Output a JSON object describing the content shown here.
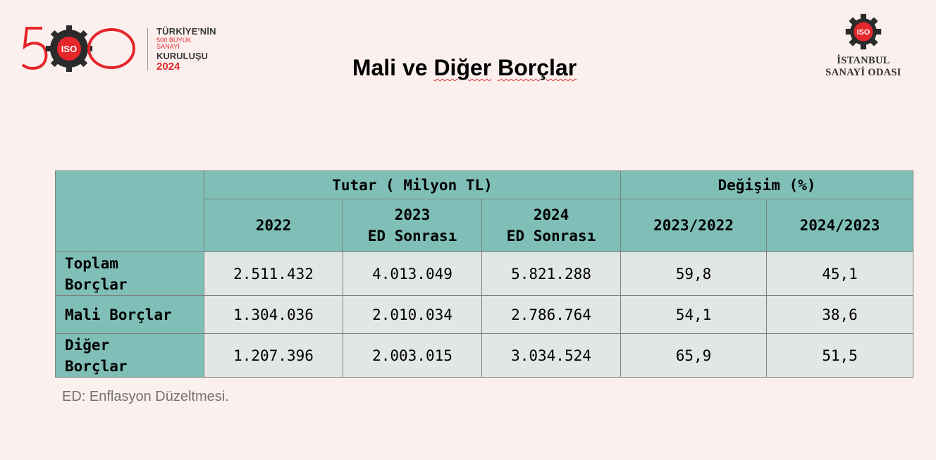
{
  "brand_left": {
    "line1": "TÜRKİYE'NİN",
    "line2": "500 BÜYÜK SANAYİ",
    "line3": "KURULUŞU",
    "line4": "2024",
    "mark_text": "ISO",
    "colors": {
      "red": "#e5262b",
      "dark": "#3a3a3a"
    }
  },
  "brand_right": {
    "mark_text": "ISO",
    "line1": "İSTANBUL",
    "line2": "SANAYİ ODASI"
  },
  "title": {
    "word1": "Mali",
    "word2": "ve",
    "word3": "Diğer",
    "word4": "Borçlar"
  },
  "table": {
    "group_headers": {
      "amount": "Tutar ( Milyon TL)",
      "change": "Değişim (%)"
    },
    "col_headers": {
      "c1": {
        "line1": "2022",
        "line2": ""
      },
      "c2": {
        "line1": "2023",
        "line2": "ED Sonrası"
      },
      "c3": {
        "line1": "2024",
        "line2": "ED Sonrası"
      },
      "c4": {
        "line1": "2023/2022",
        "line2": ""
      },
      "c5": {
        "line1": "2024/2023",
        "line2": ""
      }
    },
    "rows": [
      {
        "label_line1": "Toplam",
        "label_line2": "Borçlar",
        "v2022": "2.511.432",
        "v2023": "4.013.049",
        "v2024": "5.821.288",
        "ch23": "59,8",
        "ch24": "45,1"
      },
      {
        "label_line1": "Mali Borçlar",
        "label_line2": "",
        "v2022": "1.304.036",
        "v2023": "2.010.034",
        "v2024": "2.786.764",
        "ch23": "54,1",
        "ch24": "38,6"
      },
      {
        "label_line1": "Diğer",
        "label_line2": "Borçlar",
        "v2022": "1.207.396",
        "v2023": "2.003.015",
        "v2024": "3.034.524",
        "ch23": "65,9",
        "ch24": "51,5"
      }
    ],
    "colors": {
      "header_bg": "#7fbfb7",
      "cell_bg": "#e2e7e3",
      "border": "#7f7f7f"
    }
  },
  "footnote": "ED: Enflasyon Düzeltmesi."
}
